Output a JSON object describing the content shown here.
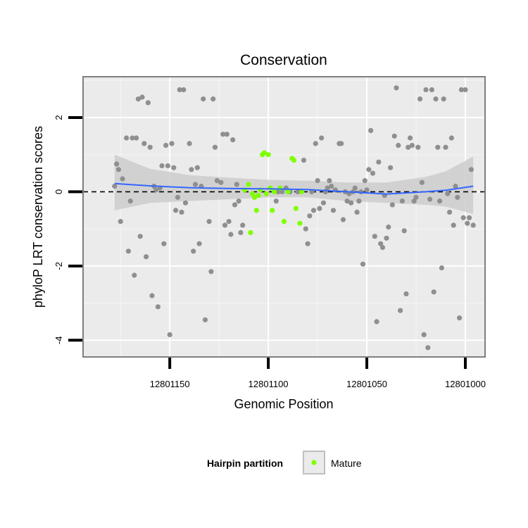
{
  "chart_data": {
    "type": "scatter",
    "title": "Conservation",
    "xlabel": "Genomic Position",
    "ylabel": "phyloP LRT conservation scores",
    "x_reversed": true,
    "xlim": [
      12801194,
      12800990
    ],
    "ylim": [
      -4.45,
      3.1
    ],
    "x_ticks": [
      12801150,
      12801100,
      12801050,
      12801000
    ],
    "x_tick_labels": [
      "12801150",
      "12801100",
      "12801050",
      "12801000"
    ],
    "y_ticks": [
      2,
      0,
      -2,
      -4
    ],
    "y_tick_labels": [
      "2",
      "0",
      "-2",
      "-4"
    ],
    "grid": true,
    "reference_line": {
      "y": 0,
      "style": "dashed"
    },
    "legend": {
      "title": "Hairpin partition",
      "entries": [
        "Mature"
      ],
      "placement": "bottom"
    },
    "colors": {
      "background": "#ebebeb",
      "other_points": "#8f8f8f",
      "mature_points": "#7fff00",
      "smooth_line": "#3366ff",
      "ribbon": "#cccccc"
    },
    "series": [
      {
        "name": "",
        "color": "#8f8f8f",
        "points": [
          [
            12801178,
            0.15
          ],
          [
            12801177,
            0.75
          ],
          [
            12801176,
            0.6
          ],
          [
            12801175,
            -0.8
          ],
          [
            12801174,
            0.35
          ],
          [
            12801172,
            1.45
          ],
          [
            12801171,
            -1.6
          ],
          [
            12801170,
            -0.25
          ],
          [
            12801169,
            1.45
          ],
          [
            12801168,
            -2.25
          ],
          [
            12801167,
            1.45
          ],
          [
            12801166,
            2.5
          ],
          [
            12801165,
            -1.2
          ],
          [
            12801164,
            2.55
          ],
          [
            12801163,
            1.3
          ],
          [
            12801162,
            -1.75
          ],
          [
            12801161,
            2.4
          ],
          [
            12801160,
            1.2
          ],
          [
            12801159,
            -2.8
          ],
          [
            12801158,
            0.15
          ],
          [
            12801157,
            0.05
          ],
          [
            12801156,
            -3.1
          ],
          [
            12801155,
            0.1
          ],
          [
            12801154,
            0.7
          ],
          [
            12801153,
            -1.4
          ],
          [
            12801152,
            1.25
          ],
          [
            12801151,
            0.7
          ],
          [
            12801150,
            -3.85
          ],
          [
            12801149,
            1.3
          ],
          [
            12801148,
            0.65
          ],
          [
            12801147,
            -0.5
          ],
          [
            12801146,
            -0.15
          ],
          [
            12801145,
            2.75
          ],
          [
            12801144,
            -0.55
          ],
          [
            12801143,
            2.75
          ],
          [
            12801142,
            -0.3
          ],
          [
            12801140,
            1.3
          ],
          [
            12801139,
            0.6
          ],
          [
            12801138,
            -1.6
          ],
          [
            12801137,
            0.2
          ],
          [
            12801136,
            0.65
          ],
          [
            12801135,
            -1.4
          ],
          [
            12801134,
            0.15
          ],
          [
            12801133,
            2.5
          ],
          [
            12801132,
            -3.45
          ],
          [
            12801130,
            -0.8
          ],
          [
            12801129,
            -2.15
          ],
          [
            12801128,
            2.5
          ],
          [
            12801127,
            1.2
          ],
          [
            12801126,
            0.3
          ],
          [
            12801124,
            0.25
          ],
          [
            12801123,
            1.55
          ],
          [
            12801122,
            -0.9
          ],
          [
            12801121,
            1.55
          ],
          [
            12801120,
            -0.8
          ],
          [
            12801119,
            -1.15
          ],
          [
            12801118,
            1.4
          ],
          [
            12801117,
            -0.35
          ],
          [
            12801116,
            0.2
          ],
          [
            12801115,
            -0.25
          ],
          [
            12801114,
            -1.1
          ],
          [
            12801113,
            -0.9
          ],
          [
            12801096,
            -0.25
          ],
          [
            12801095,
            0.0
          ],
          [
            12801093,
            0.0
          ],
          [
            12801091,
            0.1
          ],
          [
            12801089,
            0.0
          ],
          [
            12801085,
            0.0
          ],
          [
            12801082,
            0.85
          ],
          [
            12801081,
            -1.0
          ],
          [
            12801080,
            -1.4
          ],
          [
            12801079,
            -0.65
          ],
          [
            12801078,
            0.0
          ],
          [
            12801077,
            -0.5
          ],
          [
            12801076,
            1.3
          ],
          [
            12801075,
            0.3
          ],
          [
            12801074,
            -0.45
          ],
          [
            12801073,
            1.45
          ],
          [
            12801072,
            -0.3
          ],
          [
            12801071,
            0.0
          ],
          [
            12801070,
            0.1
          ],
          [
            12801069,
            0.3
          ],
          [
            12801068,
            0.15
          ],
          [
            12801067,
            -0.5
          ],
          [
            12801066,
            0.05
          ],
          [
            12801064,
            1.3
          ],
          [
            12801063,
            1.3
          ],
          [
            12801062,
            -0.75
          ],
          [
            12801061,
            0.0
          ],
          [
            12801060,
            -0.25
          ],
          [
            12801059,
            -0.05
          ],
          [
            12801058,
            -0.3
          ],
          [
            12801057,
            0.0
          ],
          [
            12801056,
            0.1
          ],
          [
            12801055,
            -0.55
          ],
          [
            12801054,
            -0.25
          ],
          [
            12801053,
            0.0
          ],
          [
            12801052,
            -1.95
          ],
          [
            12801051,
            0.3
          ],
          [
            12801050,
            0.05
          ],
          [
            12801049,
            0.6
          ],
          [
            12801048,
            1.65
          ],
          [
            12801047,
            0.5
          ],
          [
            12801046,
            -1.2
          ],
          [
            12801045,
            -3.5
          ],
          [
            12801044,
            0.8
          ],
          [
            12801043,
            -1.4
          ],
          [
            12801042,
            -1.5
          ],
          [
            12801041,
            -0.1
          ],
          [
            12801040,
            -1.25
          ],
          [
            12801039,
            -0.95
          ],
          [
            12801038,
            0.65
          ],
          [
            12801037,
            -0.35
          ],
          [
            12801036,
            1.5
          ],
          [
            12801035,
            2.8
          ],
          [
            12801034,
            1.25
          ],
          [
            12801033,
            -3.2
          ],
          [
            12801032,
            -0.25
          ],
          [
            12801031,
            -1.05
          ],
          [
            12801030,
            -2.75
          ],
          [
            12801029,
            1.2
          ],
          [
            12801028,
            1.45
          ],
          [
            12801027,
            1.25
          ],
          [
            12801026,
            -0.25
          ],
          [
            12801025,
            -0.15
          ],
          [
            12801024,
            1.2
          ],
          [
            12801023,
            2.5
          ],
          [
            12801022,
            0.25
          ],
          [
            12801021,
            -3.85
          ],
          [
            12801020,
            2.75
          ],
          [
            12801019,
            -4.2
          ],
          [
            12801018,
            -0.2
          ],
          [
            12801017,
            2.75
          ],
          [
            12801016,
            -2.7
          ],
          [
            12801015,
            2.5
          ],
          [
            12801014,
            1.2
          ],
          [
            12801013,
            -0.25
          ],
          [
            12801012,
            -2.05
          ],
          [
            12801011,
            2.5
          ],
          [
            12801010,
            1.2
          ],
          [
            12801009,
            -0.05
          ],
          [
            12801008,
            -0.55
          ],
          [
            12801007,
            1.45
          ],
          [
            12801006,
            -0.9
          ],
          [
            12801005,
            0.15
          ],
          [
            12801004,
            -0.15
          ],
          [
            12801003,
            -3.4
          ],
          [
            12801002,
            2.75
          ],
          [
            12801001,
            -0.7
          ],
          [
            12801000,
            2.75
          ],
          [
            12800999,
            -0.85
          ],
          [
            12800998,
            -0.7
          ],
          [
            12800997,
            0.6
          ],
          [
            12800996,
            -0.9
          ]
        ]
      },
      {
        "name": "Mature",
        "color": "#7fff00",
        "points": [
          [
            12801112,
            0.05
          ],
          [
            12801110,
            0.2
          ],
          [
            12801109,
            -1.1
          ],
          [
            12801108,
            -0.05
          ],
          [
            12801107,
            -0.15
          ],
          [
            12801106,
            -0.5
          ],
          [
            12801105,
            -0.1
          ],
          [
            12801104,
            0.05
          ],
          [
            12801103,
            1.0
          ],
          [
            12801102,
            1.05
          ],
          [
            12801101,
            -0.05
          ],
          [
            12801100,
            1.0
          ],
          [
            12801099,
            0.1
          ],
          [
            12801098,
            -0.5
          ],
          [
            12801097,
            0.0
          ],
          [
            12801094,
            0.1
          ],
          [
            12801092,
            -0.8
          ],
          [
            12801090,
            0.0
          ],
          [
            12801088,
            0.9
          ],
          [
            12801087,
            0.85
          ],
          [
            12801086,
            -0.45
          ],
          [
            12801084,
            -0.85
          ],
          [
            12801083,
            0.0
          ]
        ]
      }
    ],
    "smooth": {
      "x": [
        12801178,
        12801160,
        12801140,
        12801120,
        12801100,
        12801080,
        12801060,
        12801040,
        12801020,
        12801010,
        12800996
      ],
      "y": [
        0.22,
        0.16,
        0.11,
        0.09,
        0.08,
        0.06,
        0.0,
        -0.06,
        0.0,
        0.04,
        0.15
      ],
      "lower": [
        -0.5,
        -0.3,
        -0.25,
        -0.2,
        -0.15,
        -0.15,
        -0.25,
        -0.3,
        -0.35,
        -0.4,
        -0.6
      ],
      "upper": [
        1.0,
        0.62,
        0.45,
        0.38,
        0.32,
        0.3,
        0.25,
        0.25,
        0.4,
        0.55,
        0.95
      ]
    }
  }
}
